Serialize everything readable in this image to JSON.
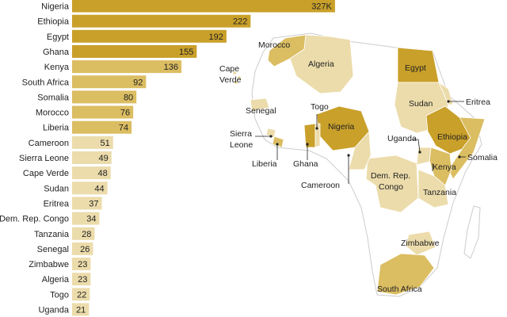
{
  "chart_data": {
    "type": "bar",
    "orientation": "horizontal",
    "title": "",
    "xlabel": "",
    "ylabel": "",
    "xlim": [
      0,
      350
    ],
    "grid": false,
    "categories": [
      "Nigeria",
      "Ethiopia",
      "Egypt",
      "Ghana",
      "Kenya",
      "South Africa",
      "Somalia",
      "Morocco",
      "Liberia",
      "Cameroon",
      "Sierra Leone",
      "Cape Verde",
      "Sudan",
      "Eritrea",
      "Dem. Rep. Congo",
      "Tanzania",
      "Senegal",
      "Zimbabwe",
      "Algeria",
      "Togo",
      "Uganda"
    ],
    "values": [
      327,
      222,
      192,
      155,
      136,
      92,
      80,
      76,
      74,
      51,
      49,
      48,
      44,
      37,
      34,
      28,
      26,
      23,
      23,
      22,
      21
    ],
    "value_labels": [
      "327K",
      "222",
      "192",
      "155",
      "136",
      "92",
      "80",
      "76",
      "74",
      "51",
      "49",
      "48",
      "44",
      "37",
      "34",
      "28",
      "26",
      "23",
      "23",
      "22",
      "21"
    ],
    "colors": {
      "dark": "#c9a02a",
      "medium": "#dbbd62",
      "light": "#ecdcab",
      "base": "#ffffff",
      "border": "#cccccc",
      "text": "#222222"
    },
    "map_labels": [
      "Morocco",
      "Algeria",
      "Egypt",
      "Cape Verde",
      "Eritrea",
      "Sudan",
      "Togo",
      "Senegal",
      "Nigeria",
      "Ethiopia",
      "Sierra Leone",
      "Uganda",
      "Somalia",
      "Liberia",
      "Ghana",
      "Kenya",
      "Dem. Rep. Congo",
      "Cameroon",
      "Tanzania",
      "Zimbabwe",
      "South Africa"
    ]
  }
}
